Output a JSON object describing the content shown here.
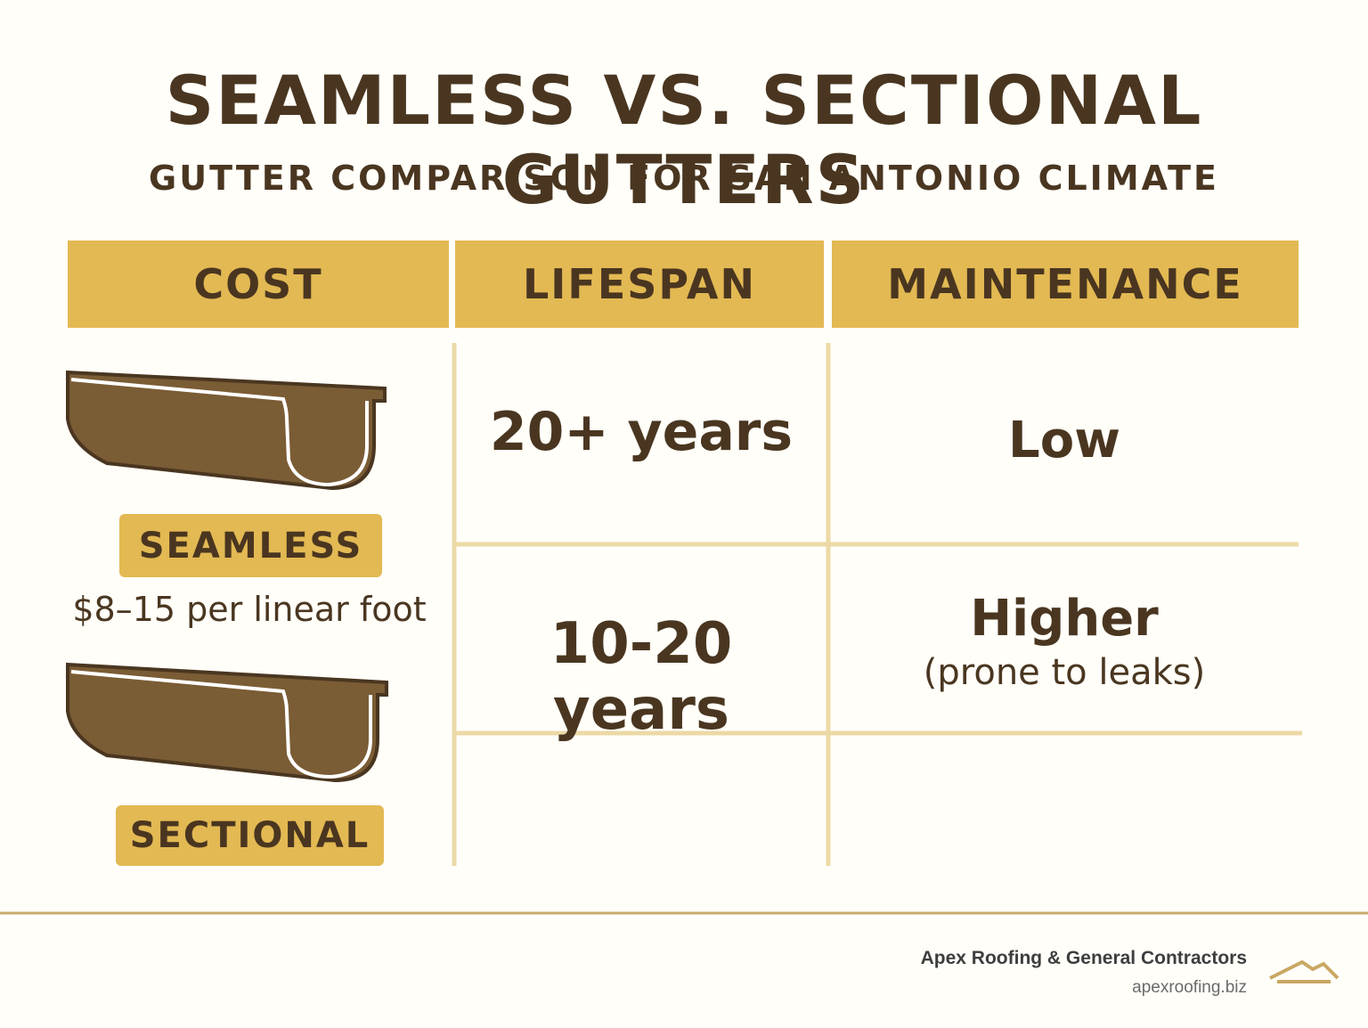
{
  "header": {
    "title": "SEAMLESS VS. SECTIONAL GUTTERS",
    "subtitle": "GUTTER COMPARISON FOR SAN ANTONIO CLIMATE"
  },
  "table": {
    "columns": [
      "COST",
      "LIFESPAN",
      "MAINTENANCE"
    ],
    "cost": {
      "seamless_label": "SEAMLESS",
      "price": "$8–15 per linear foot",
      "sectional_label": "SECTIONAL"
    },
    "rows": [
      {
        "lifespan": "20+ years",
        "maintenance": "Low"
      },
      {
        "lifespan": "10-20 years",
        "maintenance": "Higher",
        "maintenance_note": "(prone to leaks)"
      }
    ]
  },
  "footer": {
    "company": "Apex Roofing & General Contractors",
    "website": "apexroofing.biz"
  }
}
